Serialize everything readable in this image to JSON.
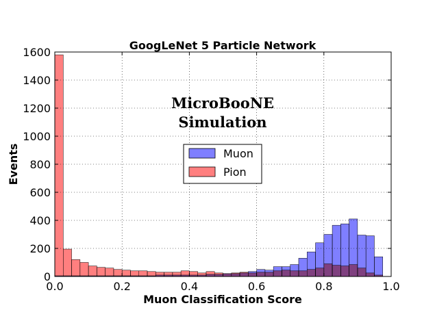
{
  "chart_data": {
    "type": "bar",
    "title": "GoogLeNet 5 Particle Network",
    "xlabel": "Muon Classification Score",
    "ylabel": "Events",
    "xlim": [
      0.0,
      1.0
    ],
    "ylim": [
      0,
      1600
    ],
    "xticks": [
      "0.0",
      "0.2",
      "0.4",
      "0.6",
      "0.8",
      "1.0"
    ],
    "yticks": [
      "0",
      "200",
      "400",
      "600",
      "800",
      "1000",
      "1200",
      "1400",
      "1600"
    ],
    "grid": true,
    "legend_position": "center",
    "annotation": [
      "MicroBooNE",
      "Simulation"
    ],
    "bin_edges": [
      0.0,
      0.025,
      0.05,
      0.075,
      0.1,
      0.125,
      0.15,
      0.175,
      0.2,
      0.225,
      0.25,
      0.275,
      0.3,
      0.325,
      0.35,
      0.375,
      0.4,
      0.425,
      0.45,
      0.475,
      0.5,
      0.525,
      0.55,
      0.575,
      0.6,
      0.625,
      0.65,
      0.675,
      0.7,
      0.725,
      0.75,
      0.775,
      0.8,
      0.825,
      0.85,
      0.875,
      0.9,
      0.925,
      0.95,
      0.975
    ],
    "series": [
      {
        "name": "Muon",
        "color": "#7f7fff",
        "values": [
          5,
          5,
          5,
          5,
          5,
          5,
          5,
          5,
          5,
          5,
          5,
          5,
          10,
          10,
          10,
          10,
          10,
          10,
          15,
          15,
          20,
          20,
          25,
          35,
          50,
          45,
          70,
          70,
          85,
          130,
          175,
          240,
          300,
          365,
          375,
          410,
          295,
          290,
          140
        ]
      },
      {
        "name": "Pion",
        "color": "#ff7f7f",
        "values": [
          1580,
          195,
          120,
          100,
          75,
          65,
          60,
          50,
          45,
          40,
          40,
          35,
          30,
          30,
          30,
          40,
          35,
          25,
          35,
          25,
          20,
          25,
          30,
          25,
          30,
          30,
          40,
          45,
          40,
          40,
          50,
          60,
          90,
          80,
          75,
          85,
          60,
          25,
          10
        ]
      }
    ]
  }
}
